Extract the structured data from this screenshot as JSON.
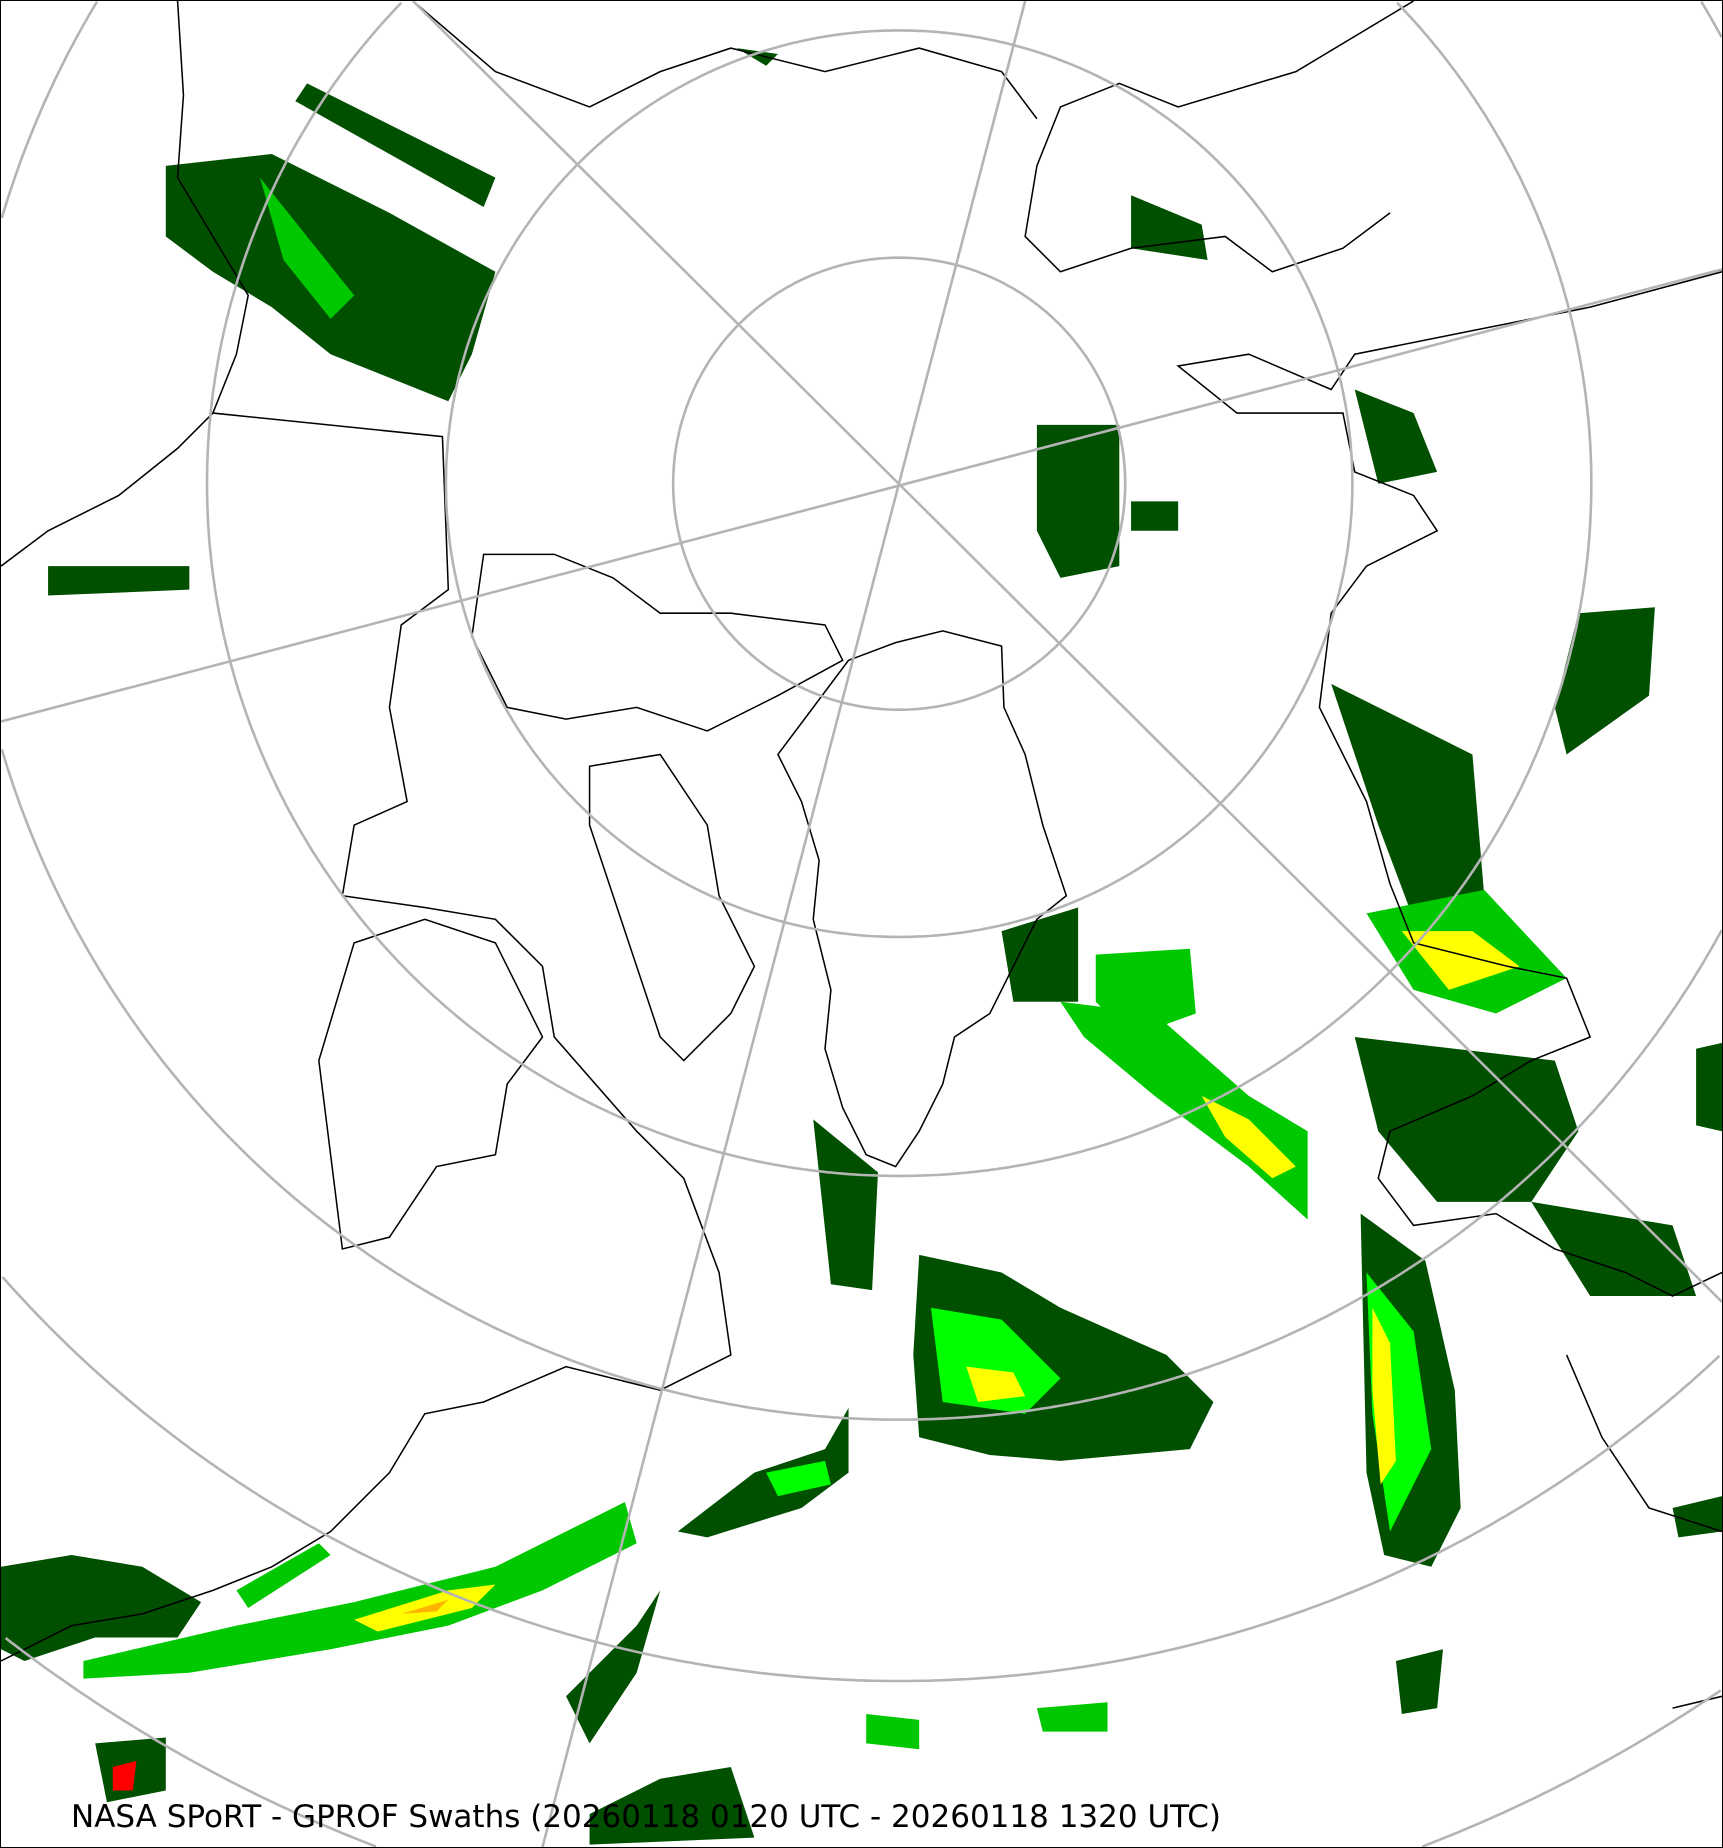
{
  "caption": "NASA SPoRT - GPROF Swaths (20260118 0120 UTC - 20260118 1320 UTC)",
  "projection": "north-polar-stereographic",
  "colors": {
    "graticule": "#b4b4b4",
    "coastline": "#000000",
    "precip_scale": [
      "#005000",
      "#008c00",
      "#00c800",
      "#00ff00",
      "#b4ff00",
      "#ffff00",
      "#ffb400",
      "#ff0000"
    ]
  }
}
